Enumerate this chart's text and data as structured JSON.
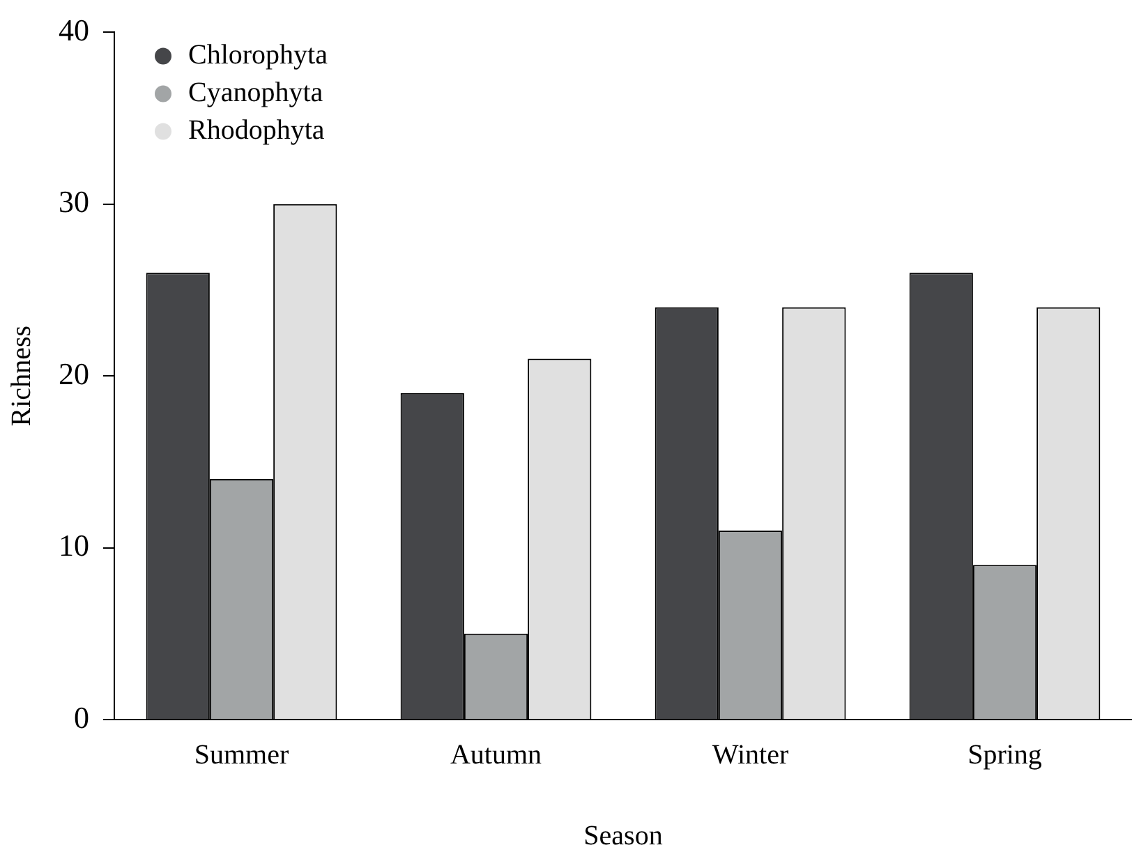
{
  "chart_data": {
    "type": "bar",
    "xlabel": "Season",
    "ylabel": "Richness",
    "categories": [
      "Summer",
      "Autumn",
      "Winter",
      "Spring"
    ],
    "series": [
      {
        "name": "Chlorophyta",
        "color": "#454649",
        "values": [
          26,
          19,
          24,
          26
        ]
      },
      {
        "name": "Cyanophyta",
        "color": "#a2a5a6",
        "values": [
          14,
          5,
          11,
          9
        ]
      },
      {
        "name": "Rhodophyta",
        "color": "#e0e0e0",
        "values": [
          30,
          21,
          24,
          24
        ]
      }
    ],
    "ylim": [
      0,
      40
    ],
    "yticks": [
      0,
      10,
      20,
      30,
      40
    ],
    "grid": false,
    "legend": "top left"
  }
}
